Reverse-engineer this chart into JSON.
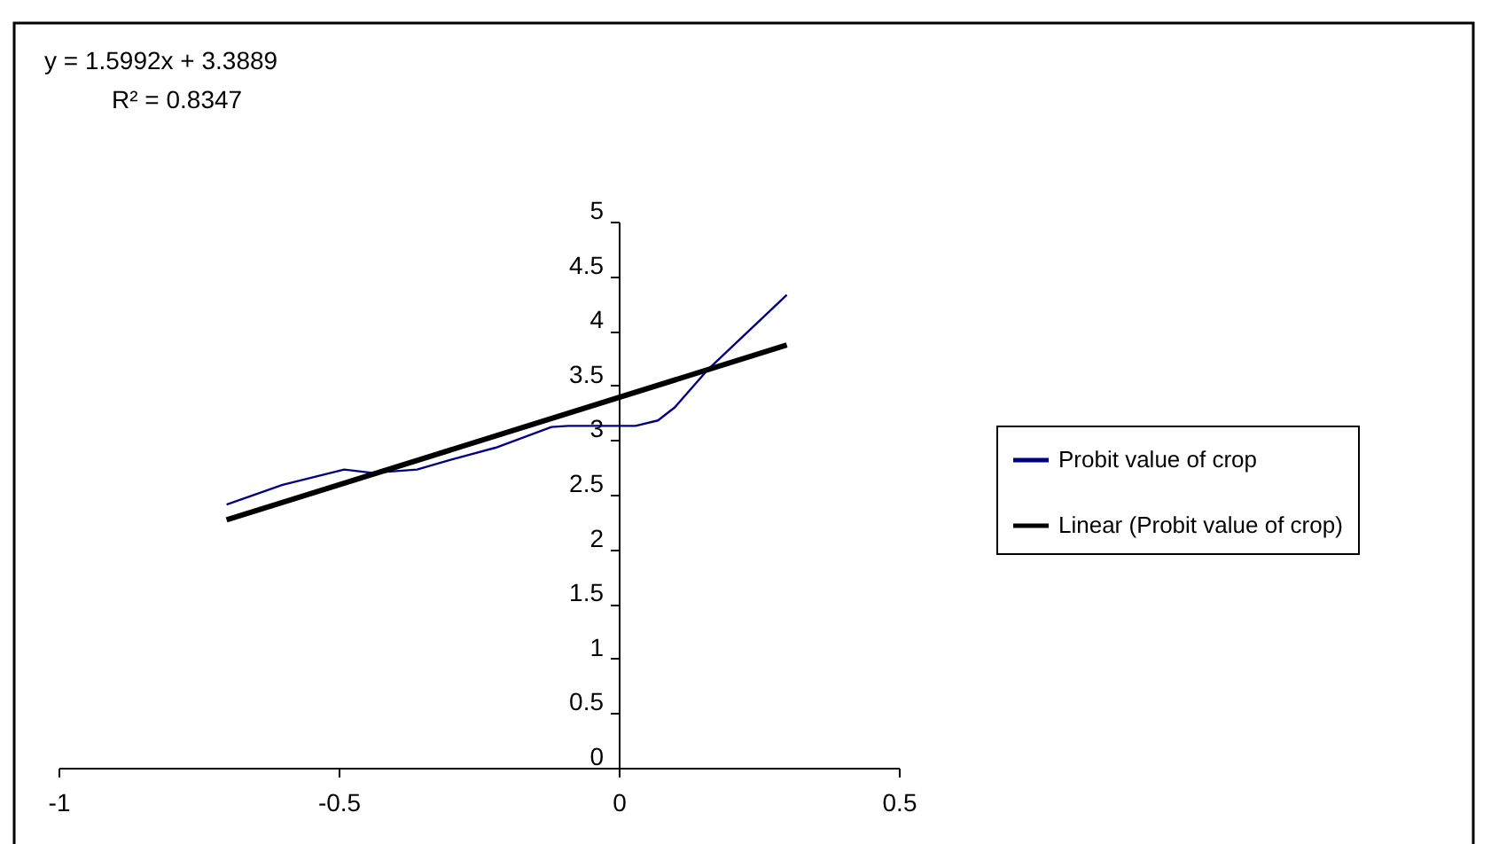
{
  "chart_data": {
    "type": "line",
    "annotations": [
      "y = 1.5992x + 3.3889",
      "R² = 0.8347"
    ],
    "series": [
      {
        "name": "Probit value of crop",
        "color": "#000080",
        "x": [
          -0.7,
          -0.6,
          -0.49,
          -0.44,
          -0.36,
          -0.3,
          -0.22,
          -0.12,
          -0.09,
          0.03,
          0.07,
          0.1,
          0.16,
          0.3
        ],
        "values": [
          2.41,
          2.59,
          2.73,
          2.7,
          2.73,
          2.82,
          2.93,
          3.12,
          3.13,
          3.13,
          3.18,
          3.3,
          3.65,
          4.33
        ]
      },
      {
        "name": "Linear (Probit value of crop)",
        "color": "#000000",
        "type": "line",
        "x": [
          -0.7,
          0.3
        ],
        "values": [
          2.27,
          3.87
        ]
      }
    ],
    "xlim": [
      -1,
      0.5
    ],
    "xticks": [
      -1,
      -0.5,
      0,
      0.5
    ],
    "ylim": [
      0,
      5
    ],
    "yticks": [
      0,
      0.5,
      1,
      1.5,
      2,
      2.5,
      3,
      3.5,
      4,
      4.5,
      5
    ],
    "grid": false,
    "legend": "right",
    "marker": "none",
    "line_style": "solid"
  }
}
